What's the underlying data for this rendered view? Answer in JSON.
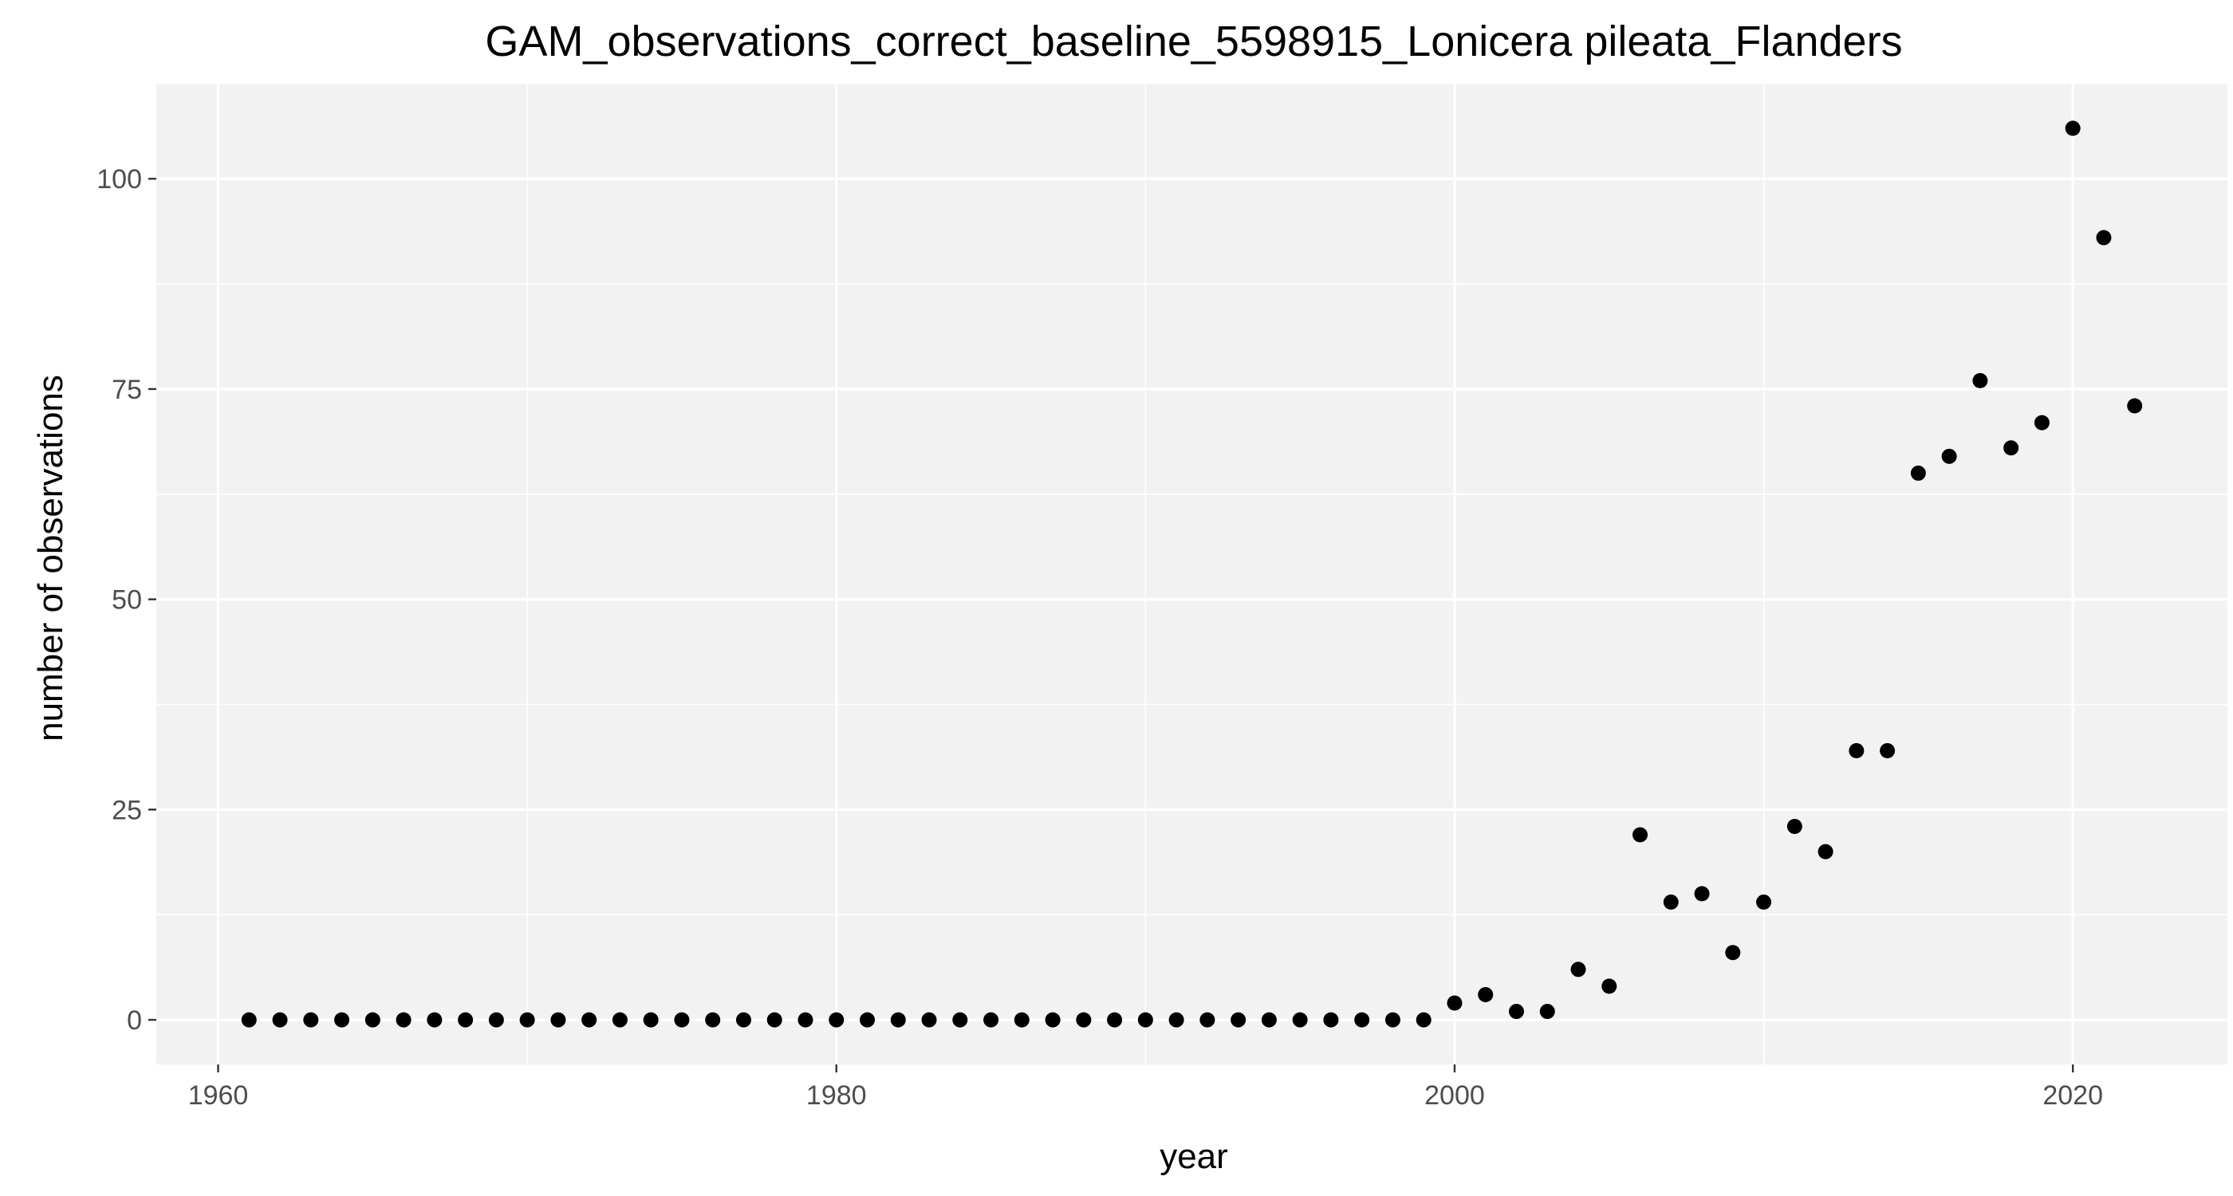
{
  "chart_data": {
    "type": "scatter",
    "title": "GAM_observations_correct_baseline_5598915_Lonicera pileata_Flanders",
    "xlabel": "year",
    "ylabel": "number of observations",
    "xlim": [
      1958,
      2025
    ],
    "ylim": [
      -5.3,
      111.3
    ],
    "x_ticks": [
      1960,
      1980,
      2000,
      2020
    ],
    "y_ticks": [
      0,
      25,
      50,
      75,
      100
    ],
    "x_tick_labels": [
      "1960",
      "1980",
      "2000",
      "2020"
    ],
    "y_tick_labels": [
      "0",
      "25",
      "50",
      "75",
      "100"
    ],
    "grid": true,
    "panel_background": "#f2f2f2",
    "grid_color": "#ffffff",
    "point_color": "#000000",
    "points": [
      {
        "x": 1961,
        "y": 0
      },
      {
        "x": 1962,
        "y": 0
      },
      {
        "x": 1963,
        "y": 0
      },
      {
        "x": 1964,
        "y": 0
      },
      {
        "x": 1965,
        "y": 0
      },
      {
        "x": 1966,
        "y": 0
      },
      {
        "x": 1967,
        "y": 0
      },
      {
        "x": 1968,
        "y": 0
      },
      {
        "x": 1969,
        "y": 0
      },
      {
        "x": 1970,
        "y": 0
      },
      {
        "x": 1971,
        "y": 0
      },
      {
        "x": 1972,
        "y": 0
      },
      {
        "x": 1973,
        "y": 0
      },
      {
        "x": 1974,
        "y": 0
      },
      {
        "x": 1975,
        "y": 0
      },
      {
        "x": 1976,
        "y": 0
      },
      {
        "x": 1977,
        "y": 0
      },
      {
        "x": 1978,
        "y": 0
      },
      {
        "x": 1979,
        "y": 0
      },
      {
        "x": 1980,
        "y": 0
      },
      {
        "x": 1981,
        "y": 0
      },
      {
        "x": 1982,
        "y": 0
      },
      {
        "x": 1983,
        "y": 0
      },
      {
        "x": 1984,
        "y": 0
      },
      {
        "x": 1985,
        "y": 0
      },
      {
        "x": 1986,
        "y": 0
      },
      {
        "x": 1987,
        "y": 0
      },
      {
        "x": 1988,
        "y": 0
      },
      {
        "x": 1989,
        "y": 0
      },
      {
        "x": 1990,
        "y": 0
      },
      {
        "x": 1991,
        "y": 0
      },
      {
        "x": 1992,
        "y": 0
      },
      {
        "x": 1993,
        "y": 0
      },
      {
        "x": 1994,
        "y": 0
      },
      {
        "x": 1995,
        "y": 0
      },
      {
        "x": 1996,
        "y": 0
      },
      {
        "x": 1997,
        "y": 0
      },
      {
        "x": 1998,
        "y": 0
      },
      {
        "x": 1999,
        "y": 0
      },
      {
        "x": 2000,
        "y": 2
      },
      {
        "x": 2001,
        "y": 3
      },
      {
        "x": 2002,
        "y": 1
      },
      {
        "x": 2003,
        "y": 1
      },
      {
        "x": 2004,
        "y": 6
      },
      {
        "x": 2005,
        "y": 4
      },
      {
        "x": 2006,
        "y": 22
      },
      {
        "x": 2007,
        "y": 14
      },
      {
        "x": 2008,
        "y": 15
      },
      {
        "x": 2009,
        "y": 8
      },
      {
        "x": 2010,
        "y": 14
      },
      {
        "x": 2011,
        "y": 23
      },
      {
        "x": 2012,
        "y": 20
      },
      {
        "x": 2013,
        "y": 32
      },
      {
        "x": 2014,
        "y": 32
      },
      {
        "x": 2015,
        "y": 65
      },
      {
        "x": 2016,
        "y": 67
      },
      {
        "x": 2017,
        "y": 76
      },
      {
        "x": 2018,
        "y": 68
      },
      {
        "x": 2019,
        "y": 71
      },
      {
        "x": 2020,
        "y": 106
      },
      {
        "x": 2021,
        "y": 93
      },
      {
        "x": 2022,
        "y": 73
      }
    ]
  }
}
